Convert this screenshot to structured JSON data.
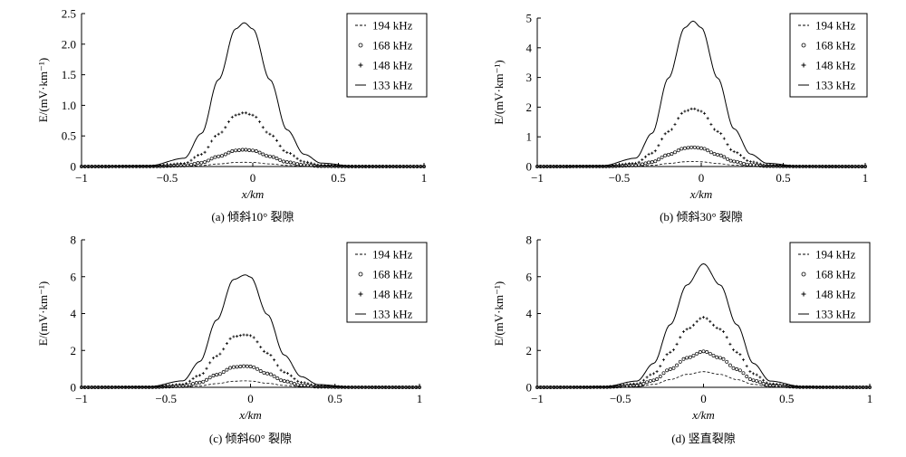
{
  "figure": {
    "background": "#ffffff",
    "ink": "#000000"
  },
  "chart_data": [
    {
      "type": "line",
      "caption": "(a) 倾斜10° 裂隙",
      "xlabel": "x/km",
      "ylabel": "E/(mV·km⁻¹)",
      "xlim": [
        -1,
        1
      ],
      "ylim": [
        0,
        2.5
      ],
      "xticks": [
        "−1",
        "−0.5",
        "0",
        "0.5",
        "1"
      ],
      "yticks": [
        "0",
        "0.5",
        "1.0",
        "1.5",
        "2.0",
        "2.5"
      ],
      "legend_position": "top-right",
      "x": [
        -1,
        -0.6,
        -0.4,
        -0.3,
        -0.2,
        -0.1,
        -0.05,
        0,
        0.1,
        0.2,
        0.3,
        0.4,
        0.6,
        1
      ],
      "series": [
        {
          "name": "194 kHz",
          "style": "dashed",
          "values": [
            0,
            0,
            0.004,
            0.016,
            0.042,
            0.066,
            0.07,
            0.066,
            0.042,
            0.018,
            0.006,
            0.002,
            0,
            0
          ]
        },
        {
          "name": "168 kHz",
          "style": "circle-markers",
          "values": [
            0,
            0.002,
            0.016,
            0.062,
            0.165,
            0.262,
            0.275,
            0.262,
            0.165,
            0.072,
            0.024,
            0.006,
            0,
            0
          ]
        },
        {
          "name": "148 kHz",
          "style": "plus-markers",
          "values": [
            0,
            0.006,
            0.05,
            0.2,
            0.53,
            0.84,
            0.88,
            0.84,
            0.53,
            0.23,
            0.075,
            0.02,
            0.002,
            0
          ]
        },
        {
          "name": "133 kHz",
          "style": "solid",
          "values": [
            0,
            0.015,
            0.135,
            0.54,
            1.42,
            2.25,
            2.35,
            2.25,
            1.42,
            0.6,
            0.2,
            0.055,
            0.006,
            0
          ]
        }
      ]
    },
    {
      "type": "line",
      "caption": "(b) 倾斜30° 裂隙",
      "xlabel": "x/km",
      "ylabel": "E/(mV·km⁻¹)",
      "xlim": [
        -1,
        1
      ],
      "ylim": [
        0,
        5
      ],
      "xticks": [
        "−1",
        "−0.5",
        "0",
        "0.5",
        "1"
      ],
      "yticks": [
        "0",
        "1",
        "2",
        "3",
        "4",
        "5"
      ],
      "legend_position": "top-right",
      "x": [
        -1,
        -0.6,
        -0.4,
        -0.3,
        -0.2,
        -0.1,
        -0.05,
        0,
        0.1,
        0.2,
        0.3,
        0.4,
        0.6,
        1
      ],
      "series": [
        {
          "name": "194 kHz",
          "style": "dashed",
          "values": [
            0,
            0,
            0.01,
            0.04,
            0.1,
            0.16,
            0.17,
            0.16,
            0.1,
            0.045,
            0.015,
            0.004,
            0,
            0
          ]
        },
        {
          "name": "168 kHz",
          "style": "circle-markers",
          "values": [
            0,
            0.003,
            0.038,
            0.15,
            0.4,
            0.62,
            0.65,
            0.62,
            0.4,
            0.17,
            0.055,
            0.015,
            0.002,
            0
          ]
        },
        {
          "name": "148 kHz",
          "style": "plus-markers",
          "values": [
            0,
            0.01,
            0.11,
            0.45,
            1.18,
            1.86,
            1.95,
            1.86,
            1.18,
            0.5,
            0.165,
            0.045,
            0.005,
            0
          ]
        },
        {
          "name": "133 kHz",
          "style": "solid",
          "values": [
            0,
            0.03,
            0.28,
            1.12,
            2.98,
            4.68,
            4.9,
            4.68,
            2.98,
            1.27,
            0.42,
            0.11,
            0.012,
            0
          ]
        }
      ]
    },
    {
      "type": "line",
      "caption": "(c) 倾斜60° 裂隙",
      "xlabel": "x/km",
      "ylabel": "E/(mV·km⁻¹)",
      "xlim": [
        -1,
        1
      ],
      "ylim": [
        0,
        8
      ],
      "xticks": [
        "−1",
        "−0.5",
        "0",
        "0.5",
        "1"
      ],
      "yticks": [
        "0",
        "2",
        "4",
        "6",
        "8"
      ],
      "legend_position": "top-right",
      "x": [
        -1,
        -0.6,
        -0.4,
        -0.3,
        -0.2,
        -0.1,
        -0.03,
        0,
        0.1,
        0.2,
        0.3,
        0.4,
        0.6,
        1
      ],
      "series": [
        {
          "name": "194 kHz",
          "style": "dashed",
          "values": [
            0,
            0,
            0.02,
            0.08,
            0.2,
            0.33,
            0.35,
            0.34,
            0.22,
            0.1,
            0.035,
            0.01,
            0,
            0
          ]
        },
        {
          "name": "168 kHz",
          "style": "circle-markers",
          "values": [
            0,
            0.005,
            0.06,
            0.26,
            0.68,
            1.1,
            1.15,
            1.13,
            0.75,
            0.34,
            0.11,
            0.03,
            0.003,
            0
          ]
        },
        {
          "name": "148 kHz",
          "style": "plus-markers",
          "values": [
            0,
            0.015,
            0.16,
            0.65,
            1.7,
            2.75,
            2.85,
            2.8,
            1.85,
            0.82,
            0.27,
            0.07,
            0.007,
            0
          ]
        },
        {
          "name": "133 kHz",
          "style": "solid",
          "values": [
            0,
            0.035,
            0.35,
            1.4,
            3.65,
            5.85,
            6.1,
            5.98,
            3.95,
            1.75,
            0.58,
            0.15,
            0.015,
            0
          ]
        }
      ]
    },
    {
      "type": "line",
      "caption": "(d) 竖直裂隙",
      "xlabel": "x/km",
      "ylabel": "E/(mV·km⁻¹)",
      "xlim": [
        -1,
        1
      ],
      "ylim": [
        0,
        8
      ],
      "xticks": [
        "−1",
        "−0.5",
        "0",
        "0.5",
        "1"
      ],
      "yticks": [
        "0",
        "2",
        "4",
        "6",
        "8"
      ],
      "legend_position": "top-right",
      "x": [
        -1,
        -0.6,
        -0.4,
        -0.3,
        -0.2,
        -0.1,
        0,
        0.1,
        0.2,
        0.3,
        0.4,
        0.6,
        1
      ],
      "series": [
        {
          "name": "194 kHz",
          "style": "dashed",
          "values": [
            0,
            0.003,
            0.04,
            0.16,
            0.42,
            0.7,
            0.85,
            0.7,
            0.42,
            0.16,
            0.04,
            0.003,
            0
          ]
        },
        {
          "name": "168 kHz",
          "style": "circle-markers",
          "values": [
            0,
            0.008,
            0.1,
            0.38,
            0.98,
            1.6,
            1.95,
            1.6,
            0.98,
            0.38,
            0.1,
            0.008,
            0
          ]
        },
        {
          "name": "148 kHz",
          "style": "plus-markers",
          "values": [
            0,
            0.015,
            0.19,
            0.74,
            1.9,
            3.15,
            3.8,
            3.15,
            1.9,
            0.74,
            0.19,
            0.015,
            0
          ]
        },
        {
          "name": "133 kHz",
          "style": "solid",
          "values": [
            0,
            0.03,
            0.34,
            1.3,
            3.4,
            5.55,
            6.7,
            5.55,
            3.4,
            1.3,
            0.34,
            0.03,
            0
          ]
        }
      ]
    }
  ]
}
